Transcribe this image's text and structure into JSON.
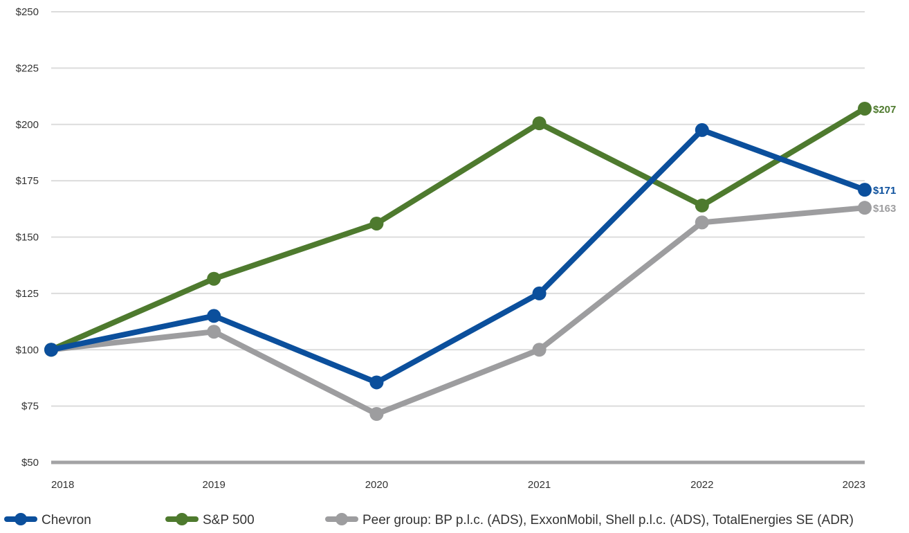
{
  "chart_data": {
    "type": "line",
    "categories": [
      "2018",
      "2019",
      "2020",
      "2021",
      "2022",
      "2023"
    ],
    "ylim": [
      50,
      250
    ],
    "yticks": [
      50,
      75,
      100,
      125,
      150,
      175,
      200,
      225,
      250
    ],
    "ytick_labels": [
      "$50",
      "$75",
      "$100",
      "$125",
      "$150",
      "$175",
      "$200",
      "$225",
      "$250"
    ],
    "grid": true,
    "legend_position": "bottom",
    "series": [
      {
        "name": "Chevron",
        "color": "#0b4f9c",
        "values": [
          100,
          115,
          85.5,
          125,
          197.5,
          171
        ],
        "end_label": "$171"
      },
      {
        "name": "S&P 500",
        "color": "#4e7a2e",
        "values": [
          100,
          131.5,
          156,
          200.5,
          164,
          207
        ],
        "end_label": "$207"
      },
      {
        "name": "Peer group: BP p.l.c. (ADS), ExxonMobil, Shell p.l.c. (ADS), TotalEnergies SE (ADR)",
        "color": "#9d9d9f",
        "values": [
          100,
          108,
          71.5,
          100,
          156.5,
          163
        ],
        "end_label": "$163"
      }
    ]
  }
}
